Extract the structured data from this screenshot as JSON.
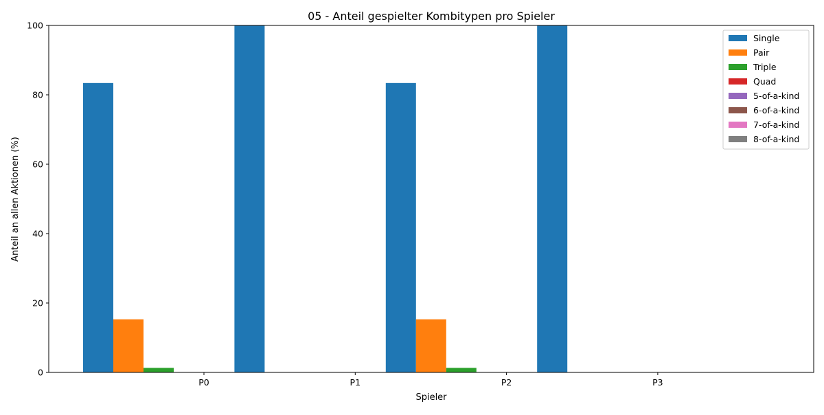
{
  "chart_data": {
    "type": "bar",
    "title": "05 - Anteil gespielter Kombitypen pro Spieler",
    "xlabel": "Spieler",
    "ylabel": "Anteil an allen Aktionen (%)",
    "ylim": [
      0,
      100
    ],
    "yticks": [
      "0",
      "20",
      "40",
      "60",
      "80",
      "100"
    ],
    "categories": [
      "P0",
      "P1",
      "P2",
      "P3"
    ],
    "legend_position": "top-right",
    "grid": false,
    "series": [
      {
        "name": "Single",
        "color": "#1f77b4",
        "values": [
          83.4,
          100,
          83.4,
          100
        ]
      },
      {
        "name": "Pair",
        "color": "#ff7f0e",
        "values": [
          15.3,
          0,
          15.3,
          0
        ]
      },
      {
        "name": "Triple",
        "color": "#2ca02c",
        "values": [
          1.3,
          0,
          1.3,
          0
        ]
      },
      {
        "name": "Quad",
        "color": "#d62728",
        "values": [
          0,
          0,
          0,
          0
        ]
      },
      {
        "name": "5-of-a-kind",
        "color": "#9467bd",
        "values": [
          0,
          0,
          0,
          0
        ]
      },
      {
        "name": "6-of-a-kind",
        "color": "#8c564b",
        "values": [
          0,
          0,
          0,
          0
        ]
      },
      {
        "name": "7-of-a-kind",
        "color": "#e377c2",
        "values": [
          0,
          0,
          0,
          0
        ]
      },
      {
        "name": "8-of-a-kind",
        "color": "#7f7f7f",
        "values": [
          0,
          0,
          0,
          0
        ]
      }
    ]
  }
}
